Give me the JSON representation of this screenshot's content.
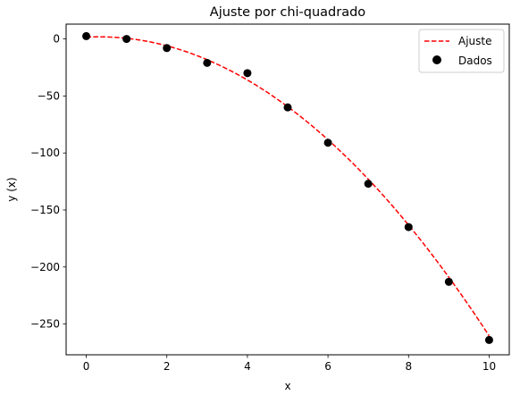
{
  "chart_data": {
    "type": "scatter",
    "title": "Ajuste por chi-quadrado",
    "xlabel": "x",
    "ylabel": "y (x)",
    "xlim": [
      -0.5,
      10.5
    ],
    "ylim": [
      -277,
      13
    ],
    "xticks": [
      0,
      2,
      4,
      6,
      8,
      10
    ],
    "yticks": [
      0,
      -50,
      -100,
      -150,
      -200,
      -250
    ],
    "xtick_labels": [
      "0",
      "2",
      "4",
      "6",
      "8",
      "10"
    ],
    "ytick_labels": [
      "0",
      "−50",
      "−100",
      "−150",
      "−200",
      "−250"
    ],
    "grid": false,
    "legend_position": "top-right",
    "series": [
      {
        "name": "Ajuste",
        "kind": "line",
        "style": "dashed",
        "color": "#ff0000",
        "model": {
          "a": -2.8,
          "b": 1.8,
          "c": 1.6
        },
        "x_range": [
          0,
          10
        ]
      },
      {
        "name": "Dados",
        "kind": "scatter",
        "color": "#000000",
        "x": [
          0,
          1,
          2,
          3,
          4,
          5,
          6,
          7,
          8,
          9,
          10
        ],
        "y": [
          2.5,
          0,
          -8,
          -21,
          -30,
          -60,
          -91,
          -127,
          -165,
          -213,
          -264
        ]
      }
    ]
  }
}
